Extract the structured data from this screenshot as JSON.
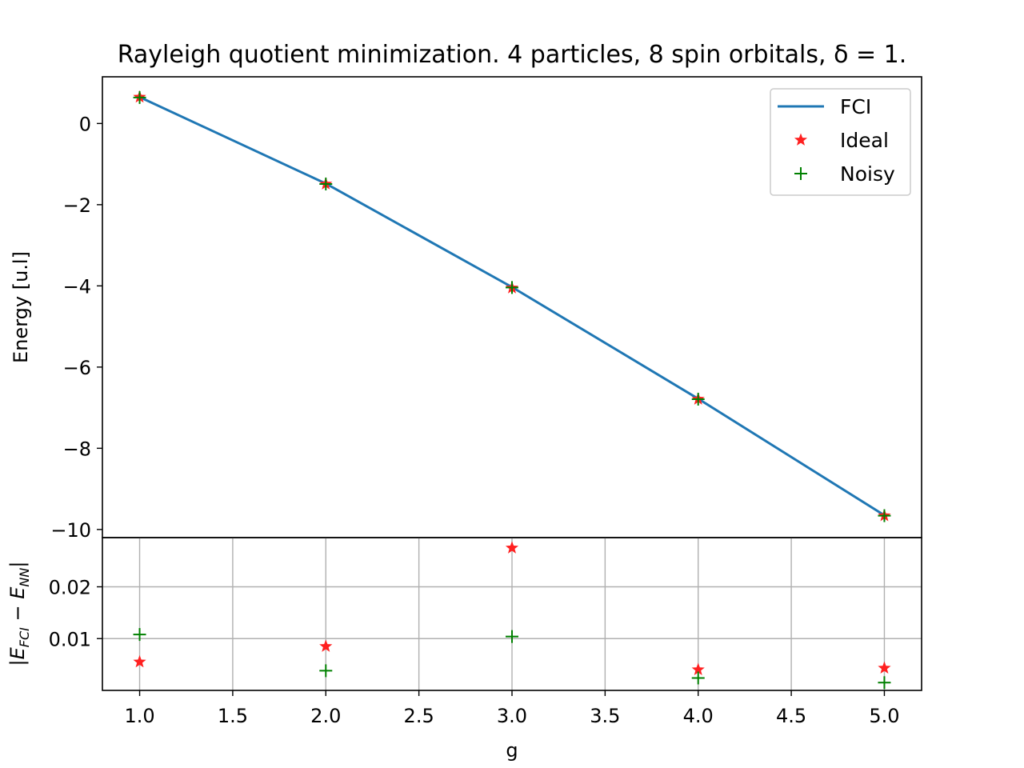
{
  "chart_data": [
    {
      "type": "line",
      "panel": "top",
      "title": "Rayleigh quotient minimization. 4 particles, 8 spin orbitals, δ = 1.",
      "ylabel": "Energy [u.l]",
      "xlim": [
        0.8,
        5.2
      ],
      "ylim": [
        -10.2,
        1.15
      ],
      "yticks": [
        0,
        -2,
        -4,
        -6,
        -8,
        -10
      ],
      "ytick_labels": [
        "0",
        "−2",
        "−4",
        "−6",
        "−8",
        "−10"
      ],
      "grid": false,
      "legend_position": "top-right",
      "x": [
        1.0,
        2.0,
        3.0,
        4.0,
        5.0
      ],
      "series": [
        {
          "name": "FCI",
          "style": "line",
          "color": "#1f77b4",
          "values": [
            0.65,
            -1.48,
            -4.03,
            -6.78,
            -9.65
          ]
        },
        {
          "name": "Ideal",
          "style": "star",
          "color": "#ff2020",
          "values": [
            0.65,
            -1.49,
            -4.05,
            -6.79,
            -9.66
          ]
        },
        {
          "name": "Noisy",
          "style": "plus",
          "color": "#008000",
          "values": [
            0.64,
            -1.49,
            -4.04,
            -6.79,
            -9.66
          ]
        }
      ]
    },
    {
      "type": "scatter",
      "panel": "bottom",
      "xlabel": "g",
      "ylabel": "|E_FCI − E_NN|",
      "xlim": [
        0.8,
        5.2
      ],
      "ylim": [
        0.0,
        0.0295
      ],
      "xticks": [
        1.0,
        1.5,
        2.0,
        2.5,
        3.0,
        3.5,
        4.0,
        4.5,
        5.0
      ],
      "xtick_labels": [
        "1.0",
        "1.5",
        "2.0",
        "2.5",
        "3.0",
        "3.5",
        "4.0",
        "4.5",
        "5.0"
      ],
      "yticks": [
        0.02,
        0.01
      ],
      "ytick_labels": [
        "0.02",
        "0.01"
      ],
      "grid": true,
      "x": [
        1.0,
        2.0,
        3.0,
        4.0,
        5.0
      ],
      "series": [
        {
          "name": "Ideal",
          "style": "star",
          "color": "#ff2020",
          "values": [
            0.0055,
            0.0085,
            0.0275,
            0.004,
            0.0043
          ]
        },
        {
          "name": "Noisy",
          "style": "plus",
          "color": "#008000",
          "values": [
            0.0108,
            0.0038,
            0.0104,
            0.0024,
            0.0015
          ]
        }
      ]
    }
  ]
}
